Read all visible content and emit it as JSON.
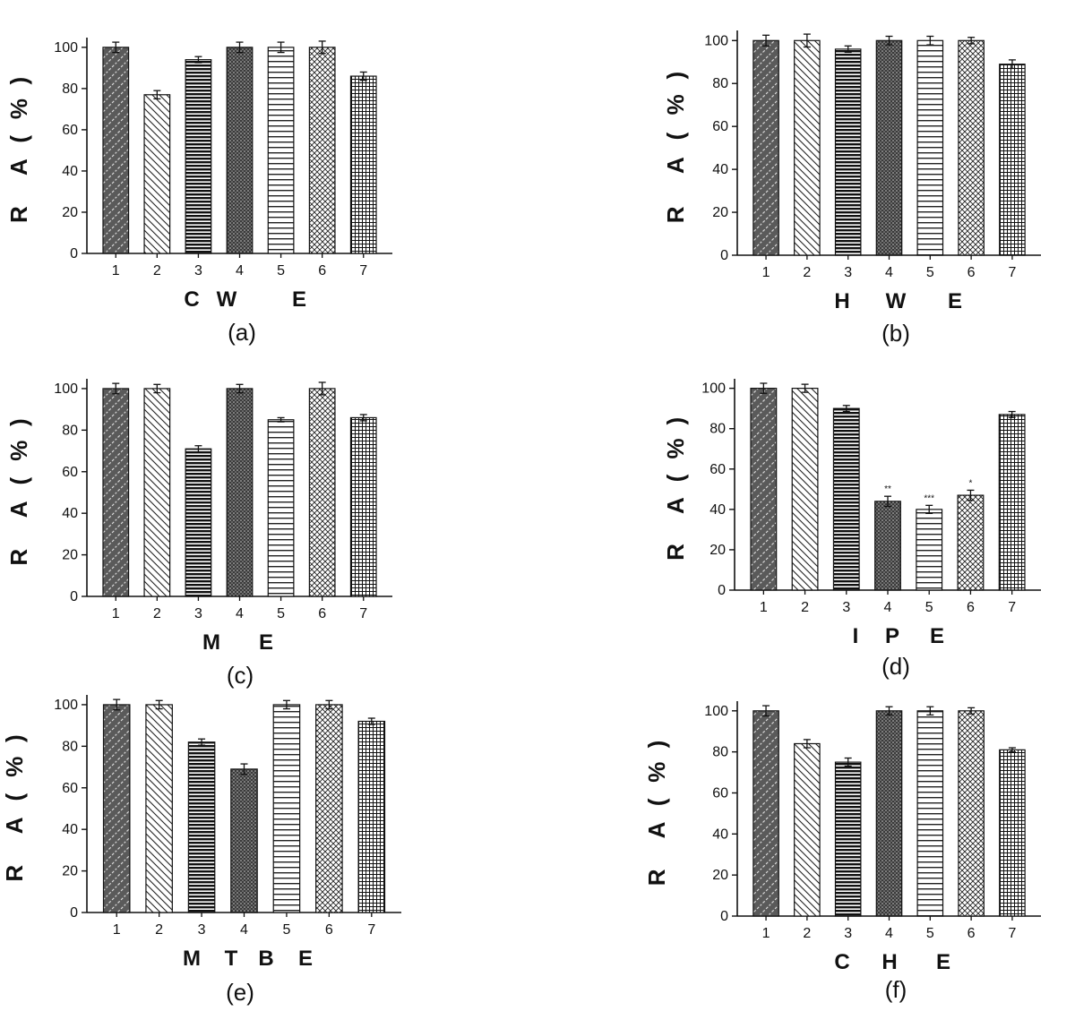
{
  "chart_data": [
    {
      "type": "bar",
      "panel_label": "(a)",
      "categories": [
        "1",
        "2",
        "3",
        "4",
        "5",
        "6",
        "7"
      ],
      "values": [
        100,
        77,
        94,
        100,
        100,
        100,
        86
      ],
      "errors": [
        2.5,
        2,
        1.5,
        2.5,
        2.5,
        3,
        2
      ],
      "annotations": [
        "",
        "",
        "",
        "",
        "",
        "",
        ""
      ],
      "ylabel": [
        "R",
        "A",
        "(",
        "%",
        ")"
      ],
      "xlabel": [
        "C",
        "W",
        "E"
      ],
      "ylim": [
        0,
        100
      ],
      "yticks": [
        0,
        20,
        40,
        60,
        80,
        100
      ]
    },
    {
      "type": "bar",
      "panel_label": "(b)",
      "categories": [
        "1",
        "2",
        "3",
        "4",
        "5",
        "6",
        "7"
      ],
      "values": [
        100,
        100,
        96,
        100,
        100,
        100,
        89
      ],
      "errors": [
        2.5,
        3,
        1.5,
        2,
        2,
        1.5,
        2
      ],
      "annotations": [
        "",
        "",
        "",
        "",
        "",
        "",
        ""
      ],
      "ylabel": [
        "R",
        "A",
        "(",
        "%",
        ")"
      ],
      "xlabel": [
        "H",
        "W",
        "E"
      ],
      "ylim": [
        0,
        100
      ],
      "yticks": [
        0,
        20,
        40,
        60,
        80,
        100
      ]
    },
    {
      "type": "bar",
      "panel_label": "(c)",
      "categories": [
        "1",
        "2",
        "3",
        "4",
        "5",
        "6",
        "7"
      ],
      "values": [
        100,
        100,
        71,
        100,
        85,
        100,
        86
      ],
      "errors": [
        2.5,
        2,
        1.5,
        2,
        1,
        3,
        1.5
      ],
      "annotations": [
        "",
        "",
        "",
        "",
        "",
        "",
        ""
      ],
      "ylabel": [
        "R",
        "A",
        "(",
        "%",
        ")"
      ],
      "xlabel": [
        "M",
        "E"
      ],
      "ylim": [
        0,
        100
      ],
      "yticks": [
        0,
        20,
        40,
        60,
        80,
        100
      ]
    },
    {
      "type": "bar",
      "panel_label": "(d)",
      "categories": [
        "1",
        "2",
        "3",
        "4",
        "5",
        "6",
        "7"
      ],
      "values": [
        100,
        100,
        90,
        44,
        40,
        47,
        87
      ],
      "errors": [
        2.5,
        2,
        1.5,
        2.5,
        2,
        2.5,
        1.5
      ],
      "annotations": [
        "",
        "",
        "",
        "**",
        "***",
        "*",
        ""
      ],
      "ylabel": [
        "R",
        "A",
        "(",
        "%",
        ")"
      ],
      "xlabel": [
        "I",
        "P",
        "E"
      ],
      "ylim": [
        0,
        100
      ],
      "yticks": [
        0,
        20,
        40,
        60,
        80,
        100
      ]
    },
    {
      "type": "bar",
      "panel_label": "(e)",
      "categories": [
        "1",
        "2",
        "3",
        "4",
        "5",
        "6",
        "7"
      ],
      "values": [
        100,
        100,
        82,
        69,
        100,
        100,
        92
      ],
      "errors": [
        2.5,
        2,
        1.5,
        2.5,
        2,
        2,
        1.5
      ],
      "annotations": [
        "",
        "",
        "",
        "",
        "",
        "",
        ""
      ],
      "ylabel": [
        "R",
        "A",
        "(",
        "%",
        ")"
      ],
      "xlabel": [
        "M",
        "T",
        "B",
        "E"
      ],
      "ylim": [
        0,
        100
      ],
      "yticks": [
        0,
        20,
        40,
        60,
        80,
        100
      ]
    },
    {
      "type": "bar",
      "panel_label": "(f)",
      "categories": [
        "1",
        "2",
        "3",
        "4",
        "5",
        "6",
        "7"
      ],
      "values": [
        100,
        84,
        75,
        100,
        100,
        100,
        81
      ],
      "errors": [
        2.5,
        2,
        2,
        2,
        2,
        1.5,
        1
      ],
      "annotations": [
        "",
        "",
        "",
        "",
        "",
        "",
        ""
      ],
      "ylabel": [
        "R",
        "A",
        "(",
        "%",
        ")"
      ],
      "xlabel": [
        "C",
        "H",
        "E"
      ],
      "ylim": [
        0,
        100
      ],
      "yticks": [
        0,
        20,
        40,
        60,
        80,
        100
      ]
    }
  ],
  "bar_patterns": [
    "diag-dark",
    "diag-back",
    "horiz-dense",
    "dots",
    "horiz-wide",
    "crosshatch",
    "grid"
  ],
  "colors": {
    "bar_dark": "#555555",
    "line": "#111111",
    "background": "#ffffff"
  }
}
